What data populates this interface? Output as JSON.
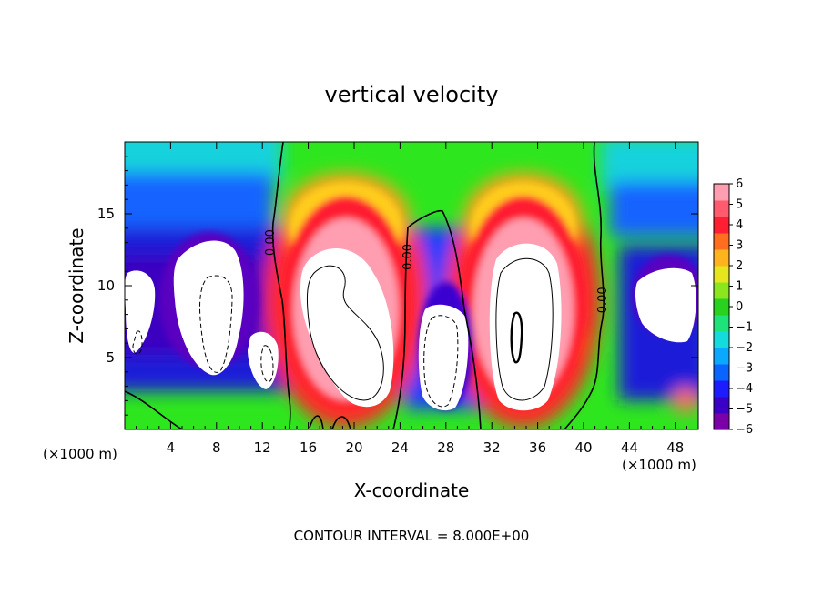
{
  "chart_data": {
    "type": "heatmap",
    "title": "vertical velocity",
    "xlabel": "X-coordinate",
    "ylabel": "Z-coordinate",
    "x_unit_label": "(×1000 m)",
    "footer": "CONTOUR INTERVAL = 8.000E+00",
    "xlim": [
      0,
      50
    ],
    "ylim": [
      0,
      20
    ],
    "x_ticks": [
      4,
      8,
      12,
      16,
      20,
      24,
      28,
      32,
      36,
      40,
      44,
      48
    ],
    "y_ticks": [
      5,
      10,
      15
    ],
    "colorbar": {
      "range": [
        -6,
        6
      ],
      "ticks": [
        6,
        5,
        4,
        3,
        2,
        1,
        0,
        -1,
        -2,
        -3,
        -4,
        -5,
        -6
      ],
      "colors": [
        "#7a00a8",
        "#3a00c8",
        "#1c1cff",
        "#0a64ff",
        "#0aa8ff",
        "#14dcdc",
        "#1ee37a",
        "#28d21e",
        "#8ce61e",
        "#e6e61e",
        "#ffb41e",
        "#ff6e1e",
        "#ff1e32",
        "#ff5a6e",
        "#ff9eb0"
      ]
    },
    "contour_labels": [
      {
        "x": 13,
        "z": 13,
        "text": "0.00"
      },
      {
        "x": 25,
        "z": 12,
        "text": "0.00"
      },
      {
        "x": 42,
        "z": 9,
        "text": "0.00"
      }
    ],
    "features": [
      {
        "kind": "updraft",
        "x": 19,
        "z": 8
      },
      {
        "kind": "updraft",
        "x": 35,
        "z": 8
      },
      {
        "kind": "downdraft",
        "x": 8,
        "z": 8
      },
      {
        "kind": "downdraft",
        "x": 27,
        "z": 6
      },
      {
        "kind": "downdraft",
        "x": 47,
        "z": 9
      }
    ]
  }
}
